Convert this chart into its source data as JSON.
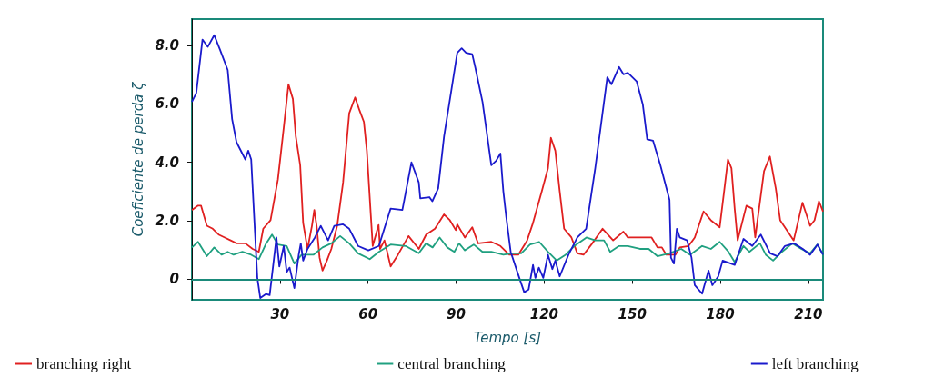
{
  "chart_data": {
    "type": "line",
    "xlabel": "Tempo [s]",
    "ylabel": "Coeficiente de perda ζ",
    "xlim": [
      0,
      215
    ],
    "ylim": [
      -0.7,
      8.9
    ],
    "xticks": [
      30,
      60,
      90,
      120,
      150,
      180,
      210
    ],
    "yticks": [
      0,
      {
        "value": 2,
        "label": "2.0"
      },
      {
        "value": 4,
        "label": "4.0"
      },
      {
        "value": 6,
        "label": "6.0"
      },
      {
        "value": 8,
        "label": "8.0"
      }
    ],
    "ref_lines": [
      {
        "axis": "y",
        "value": 0,
        "color": "#1a8a7a"
      }
    ],
    "legend": "bottom",
    "marker": "none",
    "series": [
      {
        "name": "branching right",
        "color": "#e02020",
        "x": [
          0,
          2.1,
          3.1,
          5.1,
          7.1,
          9.1,
          11.2,
          13.2,
          15.2,
          18.2,
          20.7,
          22.8,
          24.3,
          26.8,
          29.3,
          31.3,
          32.9,
          34.4,
          35.4,
          36.9,
          37.9,
          39.4,
          40.9,
          41.7,
          42.5,
          43.5,
          44.5,
          46,
          47.5,
          49.5,
          51.5,
          53.6,
          55.6,
          57.1,
          58.6,
          59.6,
          61.6,
          63.6,
          64.1,
          65.6,
          67.7,
          70.2,
          73.8,
          77.3,
          79.8,
          82.8,
          85.9,
          87.9,
          89.9,
          90.4,
          93,
          95.5,
          97.5,
          102,
          105.1,
          108.1,
          111.2,
          114.2,
          116.2,
          119.2,
          121.3,
          122.3,
          123.8,
          125.3,
          126.8,
          129.3,
          131.3,
          133.4,
          136.4,
          139.9,
          143.5,
          147,
          148.5,
          152.6,
          156.6,
          158.6,
          160.1,
          161.6,
          164.7,
          166.2,
          169.2,
          171.3,
          174.3,
          176.8,
          179.8,
          181.3,
          182.6,
          183.8,
          184.9,
          185.9,
          188.9,
          190.9,
          191.9,
          194.9,
          196.9,
          198.9,
          200.4,
          203,
          205,
          208,
          210.6,
          212.1,
          213.6,
          215
        ],
        "values": [
          2.37,
          2.52,
          2.52,
          1.83,
          1.73,
          1.53,
          1.43,
          1.33,
          1.23,
          1.23,
          1.04,
          0.94,
          1.73,
          2.02,
          3.41,
          5.19,
          6.67,
          6.17,
          4.89,
          3.9,
          1.93,
          1.04,
          1.83,
          2.37,
          1.83,
          0.74,
          0.3,
          0.64,
          1.04,
          1.83,
          3.31,
          5.68,
          6.22,
          5.78,
          5.38,
          4.4,
          1.14,
          1.86,
          1.04,
          1.33,
          0.44,
          0.84,
          1.48,
          1.04,
          1.53,
          1.73,
          2.22,
          2.02,
          1.68,
          1.88,
          1.43,
          1.78,
          1.23,
          1.28,
          1.14,
          0.84,
          0.84,
          1.33,
          1.93,
          3.01,
          3.8,
          4.84,
          4.4,
          3.01,
          1.73,
          1.43,
          0.89,
          0.84,
          1.23,
          1.73,
          1.33,
          1.63,
          1.43,
          1.43,
          1.43,
          1.09,
          1.09,
          0.84,
          0.84,
          1.09,
          1.14,
          1.43,
          2.32,
          2.02,
          1.78,
          3.01,
          4.1,
          3.8,
          2.42,
          1.33,
          2.52,
          2.42,
          1.43,
          3.7,
          4.2,
          3.11,
          2.02,
          1.63,
          1.33,
          2.62,
          1.83,
          2.02,
          2.67,
          2.32
        ]
      },
      {
        "name": "central branching",
        "color": "#20a080",
        "x": [
          0,
          2.1,
          5.1,
          7.6,
          10.1,
          12.2,
          14.2,
          17.2,
          20.2,
          22.8,
          25.3,
          27.3,
          29.3,
          32.3,
          34.9,
          37.4,
          41.4,
          44.5,
          47.5,
          50.5,
          53.6,
          56.6,
          60.6,
          63.7,
          67.7,
          72.8,
          77.3,
          79.8,
          82,
          84.4,
          87,
          89.4,
          91,
          93,
          96,
          99,
          102,
          106.1,
          109.1,
          112.2,
          115.2,
          118.3,
          121.3,
          124.3,
          127.3,
          130.3,
          134.4,
          137.4,
          140.4,
          142.5,
          145.5,
          148.5,
          152.6,
          155.6,
          158.6,
          162.6,
          166.7,
          169.7,
          173.8,
          176.8,
          179.8,
          182.8,
          184.9,
          187.9,
          189.9,
          193.5,
          195.5,
          198,
          201,
          204.6,
          207.6,
          210.6,
          213.1,
          215
        ],
        "values": [
          1.09,
          1.28,
          0.79,
          1.09,
          0.84,
          0.94,
          0.84,
          0.94,
          0.84,
          0.69,
          1.23,
          1.53,
          1.19,
          1.14,
          0.54,
          0.84,
          0.84,
          1.09,
          1.23,
          1.48,
          1.23,
          0.89,
          0.69,
          0.94,
          1.19,
          1.14,
          0.89,
          1.23,
          1.09,
          1.43,
          1.09,
          0.94,
          1.23,
          0.99,
          1.19,
          0.94,
          0.94,
          0.84,
          0.89,
          0.89,
          1.19,
          1.28,
          0.94,
          0.64,
          0.84,
          1.14,
          1.43,
          1.33,
          1.33,
          0.94,
          1.14,
          1.14,
          1.04,
          1.04,
          0.79,
          0.89,
          1.04,
          0.84,
          1.14,
          1.04,
          1.28,
          0.94,
          0.59,
          1.14,
          0.94,
          1.23,
          0.84,
          0.64,
          0.94,
          1.23,
          1.04,
          0.89,
          1.19,
          0.84
        ]
      },
      {
        "name": "left branching",
        "color": "#1a1acc",
        "x": [
          0,
          1.5,
          3.6,
          5.4,
          7.6,
          9.6,
          12.2,
          13.7,
          15.2,
          18.2,
          19.2,
          20.2,
          22.3,
          23.3,
          25.3,
          26.5,
          28.8,
          29.8,
          31.3,
          32.3,
          33.3,
          34.9,
          36.4,
          37.1,
          37.9,
          39.4,
          41.9,
          43.9,
          46.4,
          48.5,
          51.5,
          53.6,
          56.6,
          60.1,
          63.7,
          67.7,
          71.7,
          74.8,
          77.3,
          77.8,
          80.9,
          81.9,
          83.9,
          85.9,
          88.4,
          90.4,
          91.9,
          93.4,
          95.5,
          96.5,
          99,
          102,
          103.6,
          105.1,
          106.1,
          107.1,
          108.6,
          111.2,
          113.2,
          114.7,
          116.2,
          117,
          118.2,
          119.7,
          121.3,
          122.8,
          123.8,
          125.3,
          128.3,
          131.3,
          134.3,
          137.4,
          141.5,
          142.9,
          145.5,
          147,
          148.5,
          151.5,
          153.6,
          155.1,
          157.1,
          159.6,
          162.7,
          163.2,
          164.2,
          165.2,
          166.2,
          168.7,
          170.2,
          171.3,
          173.8,
          176,
          177.3,
          179.3,
          180.8,
          184.9,
          187.9,
          190.9,
          193.8,
          197,
          199.5,
          202,
          205.1,
          208.1,
          210.6,
          213.1,
          215
        ],
        "values": [
          6.07,
          6.37,
          8.2,
          7.95,
          8.35,
          7.85,
          7.16,
          5.48,
          4.69,
          4.1,
          4.4,
          4.1,
          0.05,
          -0.64,
          -0.5,
          -0.54,
          1.43,
          0.44,
          1.14,
          0.25,
          0.4,
          -0.3,
          0.84,
          1.23,
          0.64,
          1.04,
          1.43,
          1.83,
          1.33,
          1.83,
          1.88,
          1.73,
          1.14,
          0.99,
          1.14,
          2.42,
          2.37,
          4.0,
          3.31,
          2.77,
          2.81,
          2.67,
          3.11,
          4.89,
          6.47,
          7.75,
          7.9,
          7.75,
          7.7,
          7.26,
          6.07,
          3.9,
          4.05,
          4.3,
          3.0,
          2.12,
          0.94,
          0.15,
          -0.44,
          -0.35,
          0.49,
          0.05,
          0.4,
          0.05,
          0.84,
          0.35,
          0.64,
          0.1,
          0.84,
          1.43,
          1.73,
          3.8,
          6.91,
          6.67,
          7.26,
          7.01,
          7.06,
          6.77,
          5.98,
          4.79,
          4.74,
          3.9,
          2.72,
          0.74,
          0.54,
          1.73,
          1.43,
          1.33,
          0.74,
          -0.2,
          -0.49,
          0.3,
          -0.2,
          0.1,
          0.64,
          0.49,
          1.38,
          1.14,
          1.53,
          0.89,
          0.79,
          1.14,
          1.23,
          1.04,
          0.84,
          1.19,
          0.84
        ]
      }
    ]
  }
}
